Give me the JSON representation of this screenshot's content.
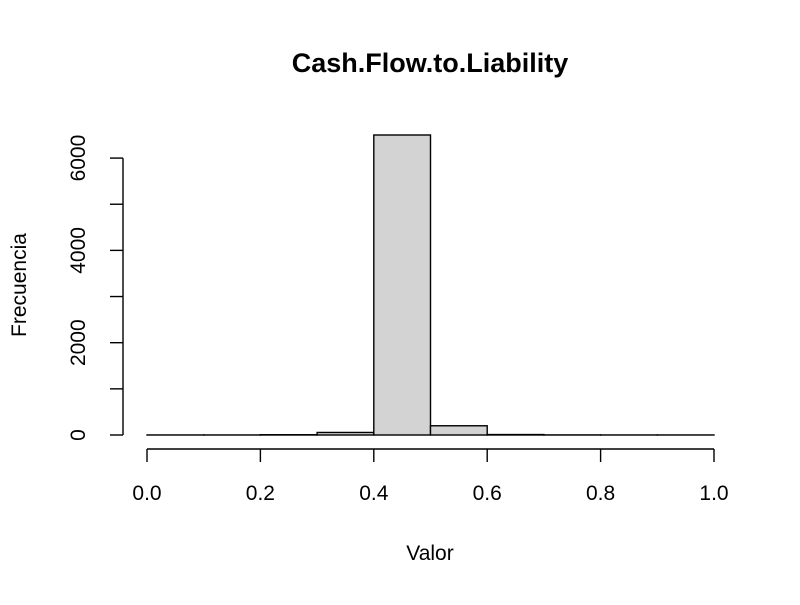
{
  "chart_data": {
    "type": "bar",
    "subtype": "histogram",
    "title": "Cash.Flow.to.Liability",
    "xlabel": "Valor",
    "ylabel": "Frecuencia",
    "xlim": [
      0,
      1
    ],
    "ylim": [
      0,
      6500
    ],
    "x_ticks": [
      "0.0",
      "0.2",
      "0.4",
      "0.6",
      "0.8",
      "1.0"
    ],
    "y_ticks": [
      "0",
      "2000",
      "4000",
      "6000"
    ],
    "bins": [
      {
        "start": 0.0,
        "end": 0.1,
        "count": 1
      },
      {
        "start": 0.1,
        "end": 0.2,
        "count": 1
      },
      {
        "start": 0.2,
        "end": 0.3,
        "count": 6
      },
      {
        "start": 0.3,
        "end": 0.4,
        "count": 55
      },
      {
        "start": 0.4,
        "end": 0.5,
        "count": 6500
      },
      {
        "start": 0.5,
        "end": 0.6,
        "count": 200
      },
      {
        "start": 0.6,
        "end": 0.7,
        "count": 10
      },
      {
        "start": 0.7,
        "end": 0.8,
        "count": 2
      },
      {
        "start": 0.8,
        "end": 0.9,
        "count": 1
      },
      {
        "start": 0.9,
        "end": 1.0,
        "count": 1
      }
    ],
    "bar_fill": "#d3d3d3",
    "bar_stroke": "#000000",
    "grid": false,
    "legend": "none"
  }
}
